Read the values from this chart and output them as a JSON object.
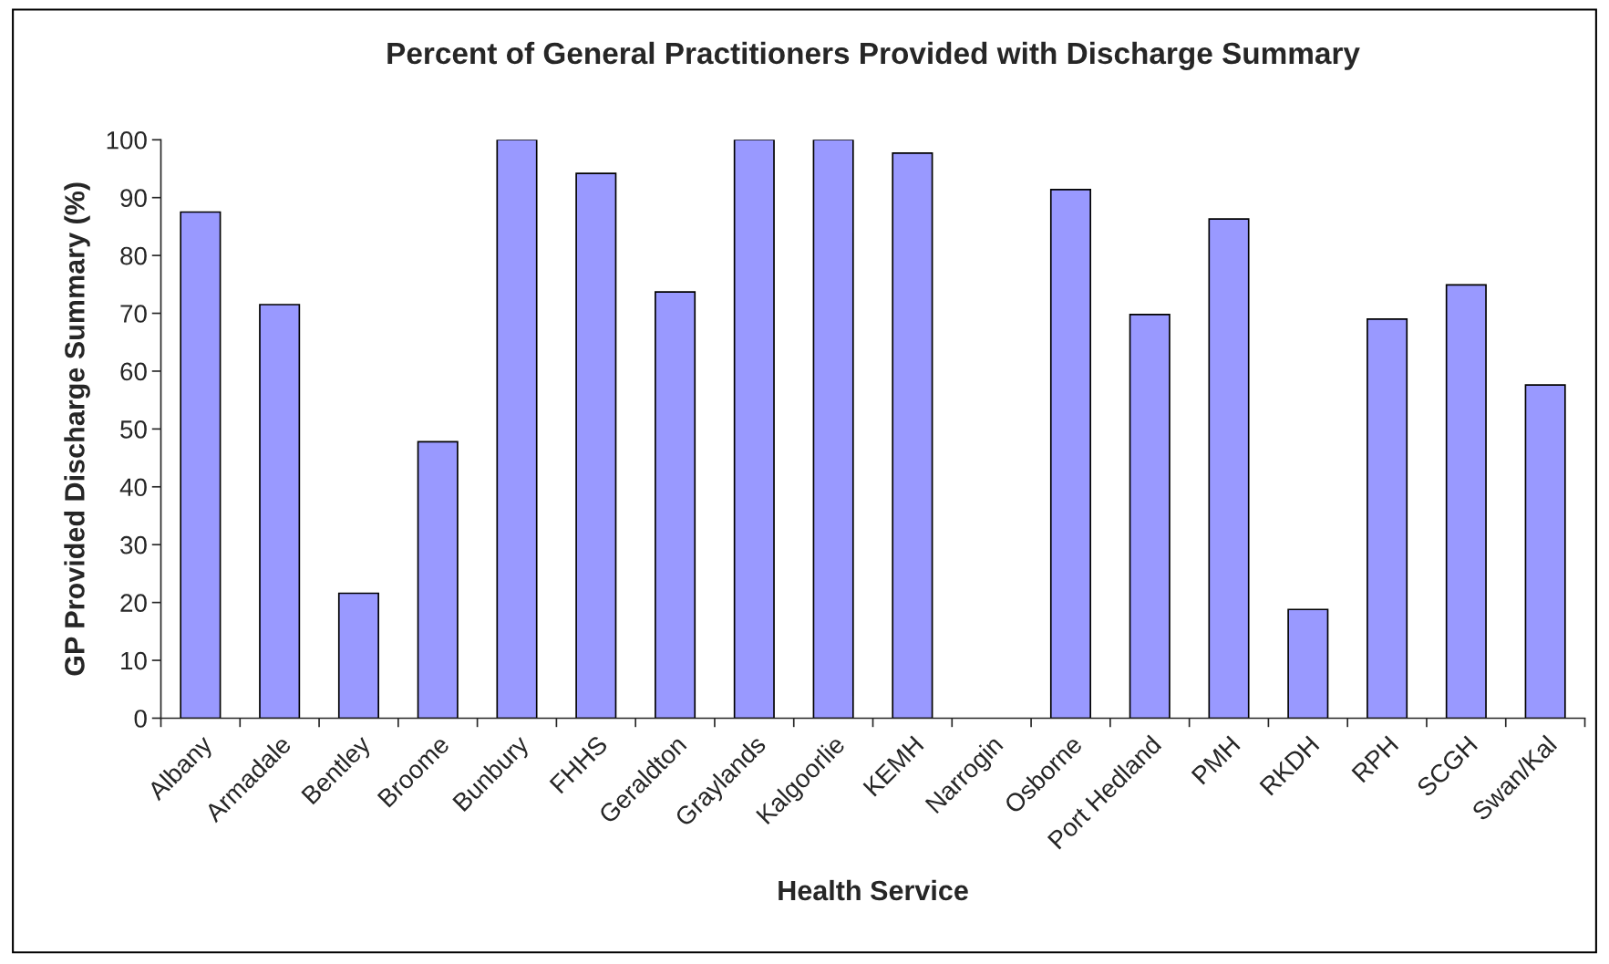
{
  "chart_data": {
    "type": "bar",
    "title": "Percent of General Practitioners Provided with Discharge Summary",
    "xlabel": "Health Service",
    "ylabel": "GP Provided Discharge Summary (%)",
    "categories": [
      "Albany",
      "Armadale",
      "Bentley",
      "Broome",
      "Bunbury",
      "FHHS",
      "Geraldton",
      "Graylands",
      "Kalgoorlie",
      "KEMH",
      "Narrogin",
      "Osborne",
      "Port Hedland",
      "PMH",
      "RKDH",
      "RPH",
      "SCGH",
      "Swan/Kal"
    ],
    "values": [
      87.5,
      71.5,
      21.6,
      47.8,
      100,
      94.2,
      73.7,
      100,
      100,
      97.7,
      null,
      91.4,
      69.8,
      86.3,
      18.8,
      69.0,
      74.9,
      57.6
    ],
    "color": "#9999ff",
    "ylim": [
      0,
      100
    ],
    "yticks": [
      0,
      10,
      20,
      30,
      40,
      50,
      60,
      70,
      80,
      90,
      100
    ],
    "grid": false,
    "legend": false
  }
}
